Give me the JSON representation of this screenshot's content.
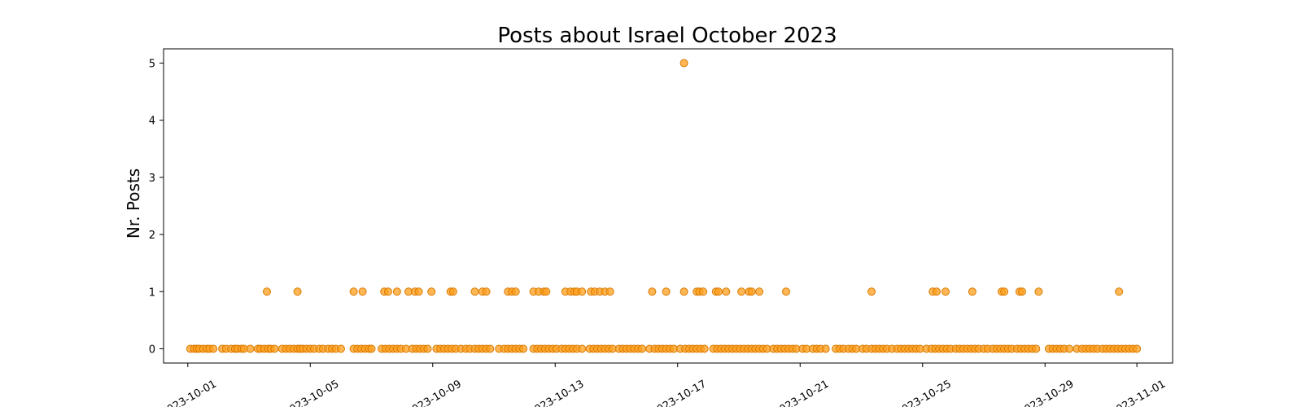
{
  "chart_data": {
    "type": "scatter",
    "title": "Posts about Israel October 2023",
    "xlabel": "",
    "ylabel": "Nr. Posts",
    "xlim": [
      "2023-09-30T05:00",
      "2023-11-02T04:00"
    ],
    "ylim": [
      -0.25,
      5.25
    ],
    "xticks": [
      "2023-10-01",
      "2023-10-05",
      "2023-10-09",
      "2023-10-13",
      "2023-10-17",
      "2023-10-21",
      "2023-10-25",
      "2023-10-29",
      "2023-11-01"
    ],
    "yticks": [
      0,
      1,
      2,
      3,
      4,
      5
    ],
    "grid": false,
    "marker_color": "#ff9f1c",
    "marker_edge_color": "#d97a00",
    "points": [
      {
        "x": "2023-10-01T02:00",
        "y": 0
      },
      {
        "x": "2023-10-01T05:00",
        "y": 0
      },
      {
        "x": "2023-10-01T07:00",
        "y": 0
      },
      {
        "x": "2023-10-01T09:00",
        "y": 0
      },
      {
        "x": "2023-10-01T12:00",
        "y": 0
      },
      {
        "x": "2023-10-01T15:00",
        "y": 0
      },
      {
        "x": "2023-10-01T17:00",
        "y": 0
      },
      {
        "x": "2023-10-01T20:00",
        "y": 0
      },
      {
        "x": "2023-10-02T03:00",
        "y": 0
      },
      {
        "x": "2023-10-02T06:00",
        "y": 0
      },
      {
        "x": "2023-10-02T10:00",
        "y": 0
      },
      {
        "x": "2023-10-02T13:00",
        "y": 0
      },
      {
        "x": "2023-10-02T15:00",
        "y": 0
      },
      {
        "x": "2023-10-02T18:00",
        "y": 0
      },
      {
        "x": "2023-10-02T20:00",
        "y": 0
      },
      {
        "x": "2023-10-03T01:00",
        "y": 0
      },
      {
        "x": "2023-10-03T07:00",
        "y": 0
      },
      {
        "x": "2023-10-03T09:00",
        "y": 0
      },
      {
        "x": "2023-10-03T12:00",
        "y": 0
      },
      {
        "x": "2023-10-03T15:00",
        "y": 0
      },
      {
        "x": "2023-10-03T17:00",
        "y": 0
      },
      {
        "x": "2023-10-03T20:00",
        "y": 0
      },
      {
        "x": "2023-10-03T14:00",
        "y": 1
      },
      {
        "x": "2023-10-04T02:00",
        "y": 0
      },
      {
        "x": "2023-10-04T05:00",
        "y": 0
      },
      {
        "x": "2023-10-04T08:00",
        "y": 0
      },
      {
        "x": "2023-10-04T11:00",
        "y": 0
      },
      {
        "x": "2023-10-04T14:00",
        "y": 0
      },
      {
        "x": "2023-10-04T16:00",
        "y": 0
      },
      {
        "x": "2023-10-04T18:00",
        "y": 0
      },
      {
        "x": "2023-10-04T21:00",
        "y": 0
      },
      {
        "x": "2023-10-04T14:00",
        "y": 1
      },
      {
        "x": "2023-10-05T00:00",
        "y": 0
      },
      {
        "x": "2023-10-05T03:00",
        "y": 0
      },
      {
        "x": "2023-10-05T07:00",
        "y": 0
      },
      {
        "x": "2023-10-05T10:00",
        "y": 0
      },
      {
        "x": "2023-10-05T14:00",
        "y": 0
      },
      {
        "x": "2023-10-05T17:00",
        "y": 0
      },
      {
        "x": "2023-10-05T20:00",
        "y": 0
      },
      {
        "x": "2023-10-06T00:00",
        "y": 0
      },
      {
        "x": "2023-10-06T10:00",
        "y": 0
      },
      {
        "x": "2023-10-06T13:00",
        "y": 0
      },
      {
        "x": "2023-10-06T16:00",
        "y": 0
      },
      {
        "x": "2023-10-06T19:00",
        "y": 0
      },
      {
        "x": "2023-10-06T22:00",
        "y": 0
      },
      {
        "x": "2023-10-06T10:00",
        "y": 1
      },
      {
        "x": "2023-10-06T17:00",
        "y": 1
      },
      {
        "x": "2023-10-07T00:00",
        "y": 0
      },
      {
        "x": "2023-10-07T08:00",
        "y": 0
      },
      {
        "x": "2023-10-07T11:00",
        "y": 0
      },
      {
        "x": "2023-10-07T14:00",
        "y": 0
      },
      {
        "x": "2023-10-07T17:00",
        "y": 0
      },
      {
        "x": "2023-10-07T20:00",
        "y": 0
      },
      {
        "x": "2023-10-07T23:00",
        "y": 0
      },
      {
        "x": "2023-10-07T10:00",
        "y": 1
      },
      {
        "x": "2023-10-07T13:00",
        "y": 1
      },
      {
        "x": "2023-10-07T20:00",
        "y": 1
      },
      {
        "x": "2023-10-08T03:00",
        "y": 0
      },
      {
        "x": "2023-10-08T08:00",
        "y": 0
      },
      {
        "x": "2023-10-08T11:00",
        "y": 0
      },
      {
        "x": "2023-10-08T14:00",
        "y": 0
      },
      {
        "x": "2023-10-08T17:00",
        "y": 0
      },
      {
        "x": "2023-10-08T20:00",
        "y": 0
      },
      {
        "x": "2023-10-08T05:00",
        "y": 1
      },
      {
        "x": "2023-10-08T10:00",
        "y": 1
      },
      {
        "x": "2023-10-08T13:00",
        "y": 1
      },
      {
        "x": "2023-10-08T23:00",
        "y": 1
      },
      {
        "x": "2023-10-09T03:00",
        "y": 0
      },
      {
        "x": "2023-10-09T06:00",
        "y": 0
      },
      {
        "x": "2023-10-09T09:00",
        "y": 0
      },
      {
        "x": "2023-10-09T12:00",
        "y": 0
      },
      {
        "x": "2023-10-09T15:00",
        "y": 0
      },
      {
        "x": "2023-10-09T18:00",
        "y": 0
      },
      {
        "x": "2023-10-09T22:00",
        "y": 0
      },
      {
        "x": "2023-10-09T14:00",
        "y": 1
      },
      {
        "x": "2023-10-09T16:00",
        "y": 1
      },
      {
        "x": "2023-10-10T02:00",
        "y": 0
      },
      {
        "x": "2023-10-10T05:00",
        "y": 0
      },
      {
        "x": "2023-10-10T09:00",
        "y": 0
      },
      {
        "x": "2023-10-10T12:00",
        "y": 0
      },
      {
        "x": "2023-10-10T15:00",
        "y": 0
      },
      {
        "x": "2023-10-10T18:00",
        "y": 0
      },
      {
        "x": "2023-10-10T21:00",
        "y": 0
      },
      {
        "x": "2023-10-10T09:00",
        "y": 1
      },
      {
        "x": "2023-10-10T15:00",
        "y": 1
      },
      {
        "x": "2023-10-10T18:00",
        "y": 1
      },
      {
        "x": "2023-10-11T04:00",
        "y": 0
      },
      {
        "x": "2023-10-11T08:00",
        "y": 0
      },
      {
        "x": "2023-10-11T11:00",
        "y": 0
      },
      {
        "x": "2023-10-11T14:00",
        "y": 0
      },
      {
        "x": "2023-10-11T17:00",
        "y": 0
      },
      {
        "x": "2023-10-11T20:00",
        "y": 0
      },
      {
        "x": "2023-10-11T23:00",
        "y": 0
      },
      {
        "x": "2023-10-11T11:00",
        "y": 1
      },
      {
        "x": "2023-10-11T14:00",
        "y": 1
      },
      {
        "x": "2023-10-11T17:00",
        "y": 1
      },
      {
        "x": "2023-10-12T07:00",
        "y": 0
      },
      {
        "x": "2023-10-12T10:00",
        "y": 0
      },
      {
        "x": "2023-10-12T13:00",
        "y": 0
      },
      {
        "x": "2023-10-12T16:00",
        "y": 0
      },
      {
        "x": "2023-10-12T19:00",
        "y": 0
      },
      {
        "x": "2023-10-12T22:00",
        "y": 0
      },
      {
        "x": "2023-10-12T07:00",
        "y": 1
      },
      {
        "x": "2023-10-12T11:00",
        "y": 1
      },
      {
        "x": "2023-10-12T15:00",
        "y": 1
      },
      {
        "x": "2023-10-12T17:00",
        "y": 1
      },
      {
        "x": "2023-10-13T01:00",
        "y": 0
      },
      {
        "x": "2023-10-13T05:00",
        "y": 0
      },
      {
        "x": "2023-10-13T08:00",
        "y": 0
      },
      {
        "x": "2023-10-13T11:00",
        "y": 0
      },
      {
        "x": "2023-10-13T14:00",
        "y": 0
      },
      {
        "x": "2023-10-13T17:00",
        "y": 0
      },
      {
        "x": "2023-10-13T21:00",
        "y": 0
      },
      {
        "x": "2023-10-13T08:00",
        "y": 1
      },
      {
        "x": "2023-10-13T12:00",
        "y": 1
      },
      {
        "x": "2023-10-13T15:00",
        "y": 1
      },
      {
        "x": "2023-10-13T17:00",
        "y": 1
      },
      {
        "x": "2023-10-13T21:00",
        "y": 1
      },
      {
        "x": "2023-10-14T03:00",
        "y": 0
      },
      {
        "x": "2023-10-14T06:00",
        "y": 0
      },
      {
        "x": "2023-10-14T09:00",
        "y": 0
      },
      {
        "x": "2023-10-14T12:00",
        "y": 0
      },
      {
        "x": "2023-10-14T15:00",
        "y": 0
      },
      {
        "x": "2023-10-14T18:00",
        "y": 0
      },
      {
        "x": "2023-10-14T21:00",
        "y": 0
      },
      {
        "x": "2023-10-14T04:00",
        "y": 1
      },
      {
        "x": "2023-10-14T07:00",
        "y": 1
      },
      {
        "x": "2023-10-14T11:00",
        "y": 1
      },
      {
        "x": "2023-10-14T15:00",
        "y": 1
      },
      {
        "x": "2023-10-14T19:00",
        "y": 1
      },
      {
        "x": "2023-10-15T02:00",
        "y": 0
      },
      {
        "x": "2023-10-15T05:00",
        "y": 0
      },
      {
        "x": "2023-10-15T08:00",
        "y": 0
      },
      {
        "x": "2023-10-15T11:00",
        "y": 0
      },
      {
        "x": "2023-10-15T14:00",
        "y": 0
      },
      {
        "x": "2023-10-15T17:00",
        "y": 0
      },
      {
        "x": "2023-10-15T20:00",
        "y": 0
      },
      {
        "x": "2023-10-16T02:00",
        "y": 0
      },
      {
        "x": "2023-10-16T06:00",
        "y": 0
      },
      {
        "x": "2023-10-16T09:00",
        "y": 0
      },
      {
        "x": "2023-10-16T12:00",
        "y": 0
      },
      {
        "x": "2023-10-16T15:00",
        "y": 0
      },
      {
        "x": "2023-10-16T18:00",
        "y": 0
      },
      {
        "x": "2023-10-16T21:00",
        "y": 0
      },
      {
        "x": "2023-10-16T04:00",
        "y": 1
      },
      {
        "x": "2023-10-16T15:00",
        "y": 1
      },
      {
        "x": "2023-10-17T02:00",
        "y": 0
      },
      {
        "x": "2023-10-17T06:00",
        "y": 0
      },
      {
        "x": "2023-10-17T09:00",
        "y": 0
      },
      {
        "x": "2023-10-17T12:00",
        "y": 0
      },
      {
        "x": "2023-10-17T15:00",
        "y": 0
      },
      {
        "x": "2023-10-17T18:00",
        "y": 0
      },
      {
        "x": "2023-10-17T21:00",
        "y": 0
      },
      {
        "x": "2023-10-17T05:00",
        "y": 5
      },
      {
        "x": "2023-10-17T05:00",
        "y": 1
      },
      {
        "x": "2023-10-17T15:00",
        "y": 1
      },
      {
        "x": "2023-10-17T17:00",
        "y": 1
      },
      {
        "x": "2023-10-17T20:00",
        "y": 1
      },
      {
        "x": "2023-10-18T04:00",
        "y": 0
      },
      {
        "x": "2023-10-18T07:00",
        "y": 0
      },
      {
        "x": "2023-10-18T10:00",
        "y": 0
      },
      {
        "x": "2023-10-18T13:00",
        "y": 0
      },
      {
        "x": "2023-10-18T16:00",
        "y": 0
      },
      {
        "x": "2023-10-18T19:00",
        "y": 0
      },
      {
        "x": "2023-10-18T22:00",
        "y": 0
      },
      {
        "x": "2023-10-18T06:00",
        "y": 1
      },
      {
        "x": "2023-10-18T08:00",
        "y": 1
      },
      {
        "x": "2023-10-18T14:00",
        "y": 1
      },
      {
        "x": "2023-10-19T01:00",
        "y": 0
      },
      {
        "x": "2023-10-19T04:00",
        "y": 0
      },
      {
        "x": "2023-10-19T07:00",
        "y": 0
      },
      {
        "x": "2023-10-19T10:00",
        "y": 0
      },
      {
        "x": "2023-10-19T13:00",
        "y": 0
      },
      {
        "x": "2023-10-19T16:00",
        "y": 0
      },
      {
        "x": "2023-10-19T19:00",
        "y": 0
      },
      {
        "x": "2023-10-19T22:00",
        "y": 0
      },
      {
        "x": "2023-10-19T02:00",
        "y": 1
      },
      {
        "x": "2023-10-19T08:00",
        "y": 1
      },
      {
        "x": "2023-10-19T10:00",
        "y": 1
      },
      {
        "x": "2023-10-19T16:00",
        "y": 1
      },
      {
        "x": "2023-10-20T03:00",
        "y": 0
      },
      {
        "x": "2023-10-20T06:00",
        "y": 0
      },
      {
        "x": "2023-10-20T09:00",
        "y": 0
      },
      {
        "x": "2023-10-20T12:00",
        "y": 0
      },
      {
        "x": "2023-10-20T15:00",
        "y": 0
      },
      {
        "x": "2023-10-20T18:00",
        "y": 0
      },
      {
        "x": "2023-10-20T21:00",
        "y": 0
      },
      {
        "x": "2023-10-20T13:00",
        "y": 1
      },
      {
        "x": "2023-10-21T02:00",
        "y": 0
      },
      {
        "x": "2023-10-21T05:00",
        "y": 0
      },
      {
        "x": "2023-10-21T10:00",
        "y": 0
      },
      {
        "x": "2023-10-21T13:00",
        "y": 0
      },
      {
        "x": "2023-10-21T16:00",
        "y": 0
      },
      {
        "x": "2023-10-21T20:00",
        "y": 0
      },
      {
        "x": "2023-10-22T04:00",
        "y": 0
      },
      {
        "x": "2023-10-22T07:00",
        "y": 0
      },
      {
        "x": "2023-10-22T10:00",
        "y": 0
      },
      {
        "x": "2023-10-22T14:00",
        "y": 0
      },
      {
        "x": "2023-10-22T17:00",
        "y": 0
      },
      {
        "x": "2023-10-22T20:00",
        "y": 0
      },
      {
        "x": "2023-10-23T01:00",
        "y": 0
      },
      {
        "x": "2023-10-23T04:00",
        "y": 0
      },
      {
        "x": "2023-10-23T08:00",
        "y": 0
      },
      {
        "x": "2023-10-23T11:00",
        "y": 0
      },
      {
        "x": "2023-10-23T14:00",
        "y": 0
      },
      {
        "x": "2023-10-23T17:00",
        "y": 0
      },
      {
        "x": "2023-10-23T20:00",
        "y": 0
      },
      {
        "x": "2023-10-23T08:00",
        "y": 1
      },
      {
        "x": "2023-10-24T00:00",
        "y": 0
      },
      {
        "x": "2023-10-24T04:00",
        "y": 0
      },
      {
        "x": "2023-10-24T07:00",
        "y": 0
      },
      {
        "x": "2023-10-24T10:00",
        "y": 0
      },
      {
        "x": "2023-10-24T13:00",
        "y": 0
      },
      {
        "x": "2023-10-24T16:00",
        "y": 0
      },
      {
        "x": "2023-10-24T19:00",
        "y": 0
      },
      {
        "x": "2023-10-24T22:00",
        "y": 0
      },
      {
        "x": "2023-10-25T03:00",
        "y": 0
      },
      {
        "x": "2023-10-25T07:00",
        "y": 0
      },
      {
        "x": "2023-10-25T10:00",
        "y": 0
      },
      {
        "x": "2023-10-25T13:00",
        "y": 0
      },
      {
        "x": "2023-10-25T16:00",
        "y": 0
      },
      {
        "x": "2023-10-25T19:00",
        "y": 0
      },
      {
        "x": "2023-10-25T22:00",
        "y": 0
      },
      {
        "x": "2023-10-25T08:00",
        "y": 1
      },
      {
        "x": "2023-10-25T11:00",
        "y": 1
      },
      {
        "x": "2023-10-25T18:00",
        "y": 1
      },
      {
        "x": "2023-10-26T02:00",
        "y": 0
      },
      {
        "x": "2023-10-26T05:00",
        "y": 0
      },
      {
        "x": "2023-10-26T08:00",
        "y": 0
      },
      {
        "x": "2023-10-26T11:00",
        "y": 0
      },
      {
        "x": "2023-10-26T14:00",
        "y": 0
      },
      {
        "x": "2023-10-26T17:00",
        "y": 0
      },
      {
        "x": "2023-10-26T20:00",
        "y": 0
      },
      {
        "x": "2023-10-26T15:00",
        "y": 1
      },
      {
        "x": "2023-10-27T00:00",
        "y": 0
      },
      {
        "x": "2023-10-27T03:00",
        "y": 0
      },
      {
        "x": "2023-10-27T07:00",
        "y": 0
      },
      {
        "x": "2023-10-27T10:00",
        "y": 0
      },
      {
        "x": "2023-10-27T13:00",
        "y": 0
      },
      {
        "x": "2023-10-27T16:00",
        "y": 0
      },
      {
        "x": "2023-10-27T19:00",
        "y": 0
      },
      {
        "x": "2023-10-27T22:00",
        "y": 0
      },
      {
        "x": "2023-10-27T14:00",
        "y": 1
      },
      {
        "x": "2023-10-27T16:00",
        "y": 1
      },
      {
        "x": "2023-10-28T02:00",
        "y": 0
      },
      {
        "x": "2023-10-28T05:00",
        "y": 0
      },
      {
        "x": "2023-10-28T08:00",
        "y": 0
      },
      {
        "x": "2023-10-28T11:00",
        "y": 0
      },
      {
        "x": "2023-10-28T14:00",
        "y": 0
      },
      {
        "x": "2023-10-28T17:00",
        "y": 0
      },
      {
        "x": "2023-10-28T04:00",
        "y": 1
      },
      {
        "x": "2023-10-28T06:00",
        "y": 1
      },
      {
        "x": "2023-10-28T19:00",
        "y": 1
      },
      {
        "x": "2023-10-29T03:00",
        "y": 0
      },
      {
        "x": "2023-10-29T06:00",
        "y": 0
      },
      {
        "x": "2023-10-29T09:00",
        "y": 0
      },
      {
        "x": "2023-10-29T12:00",
        "y": 0
      },
      {
        "x": "2023-10-29T15:00",
        "y": 0
      },
      {
        "x": "2023-10-29T19:00",
        "y": 0
      },
      {
        "x": "2023-10-30T01:00",
        "y": 0
      },
      {
        "x": "2023-10-30T05:00",
        "y": 0
      },
      {
        "x": "2023-10-30T08:00",
        "y": 0
      },
      {
        "x": "2023-10-30T11:00",
        "y": 0
      },
      {
        "x": "2023-10-30T14:00",
        "y": 0
      },
      {
        "x": "2023-10-30T17:00",
        "y": 0
      },
      {
        "x": "2023-10-30T21:00",
        "y": 0
      },
      {
        "x": "2023-10-31T00:00",
        "y": 0
      },
      {
        "x": "2023-10-31T03:00",
        "y": 0
      },
      {
        "x": "2023-10-31T06:00",
        "y": 0
      },
      {
        "x": "2023-10-31T09:00",
        "y": 0
      },
      {
        "x": "2023-10-31T12:00",
        "y": 0
      },
      {
        "x": "2023-10-31T15:00",
        "y": 0
      },
      {
        "x": "2023-10-31T18:00",
        "y": 0
      },
      {
        "x": "2023-10-31T21:00",
        "y": 0
      },
      {
        "x": "2023-10-31T10:00",
        "y": 1
      },
      {
        "x": "2023-11-01T00:00",
        "y": 0
      }
    ]
  }
}
